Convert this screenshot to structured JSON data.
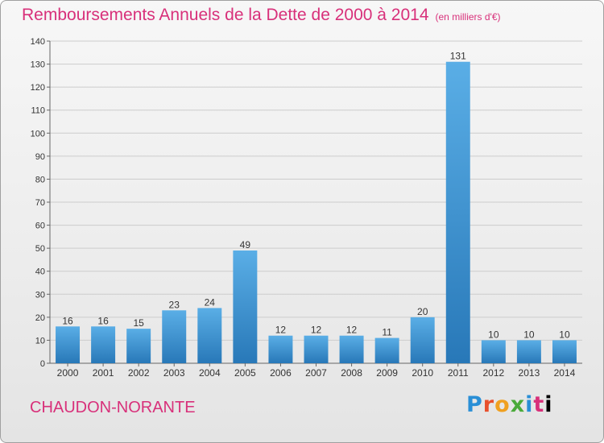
{
  "header": {
    "title": "Remboursements Annuels de la Dette de 2000 à 2014",
    "subtitle": "(en milliers d'€)"
  },
  "location": "CHAUDON-NORANTE",
  "logo": {
    "text": "Proxiti",
    "letters": [
      "P",
      "r",
      "o",
      "x",
      "i",
      "t",
      "i"
    ]
  },
  "colors": {
    "title": "#d8307a",
    "bar_light": "#5aaee6",
    "bar_dark": "#2878b8",
    "grid": "#cccccc"
  },
  "chart_data": {
    "type": "bar",
    "categories": [
      "2000",
      "2001",
      "2002",
      "2003",
      "2004",
      "2005",
      "2006",
      "2007",
      "2008",
      "2009",
      "2010",
      "2011",
      "2012",
      "2013",
      "2014"
    ],
    "values": [
      16,
      16,
      15,
      23,
      24,
      49,
      12,
      12,
      12,
      11,
      20,
      131,
      10,
      10,
      10
    ],
    "title": "Remboursements Annuels de la Dette de 2000 à 2014",
    "xlabel": "",
    "ylabel": "",
    "ylim": [
      0,
      140
    ],
    "yticks": [
      0,
      10,
      20,
      30,
      40,
      50,
      60,
      70,
      80,
      90,
      100,
      110,
      120,
      130,
      140
    ],
    "grid": true,
    "data_labels": true
  }
}
